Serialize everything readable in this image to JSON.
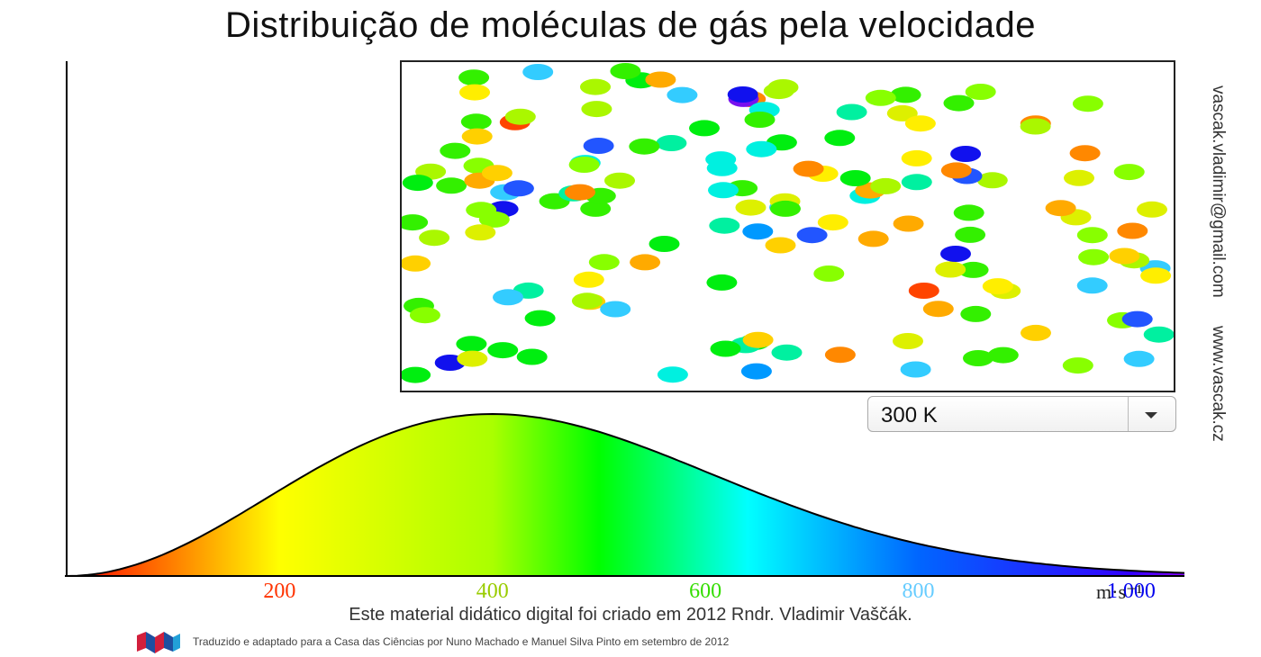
{
  "page": {
    "title": "Distribuição de moléculas de gás pela velocidade",
    "email": "vascak.vladimir@gmail.com",
    "website": "www.vascak.cz",
    "credit": "Este material didático digital foi criado em 2012 Rndr. Vladimir Vaščák.",
    "translation": "Traduzido e adaptado para a Casa das Ciências por Nuno Machado e Manuel Silva Pinto em setembro de 2012",
    "logo_icon": "casa-das-ciencias-logo-icon"
  },
  "temperature_select": {
    "value": "300 K",
    "arrow_icon": "chevron-down-icon"
  },
  "chart_data": {
    "type": "area",
    "title": "Distribuição de moléculas de gás pela velocidade",
    "xlabel": "m·s⁻¹",
    "ylabel": "",
    "xlim": [
      0,
      1050
    ],
    "x_ticks": [
      {
        "value": 200,
        "label": "200",
        "color": "#ff3300"
      },
      {
        "value": 400,
        "label": "400",
        "color": "#99cc00"
      },
      {
        "value": 600,
        "label": "600",
        "color": "#33dd00"
      },
      {
        "value": 800,
        "label": "800",
        "color": "#66ccff"
      },
      {
        "value": 1000,
        "label": "1 000",
        "color": "#0000ee"
      }
    ],
    "curve": "Maxwell-Boltzmann speed distribution, peak near 400 m·s⁻¹",
    "peak_speed": 400,
    "gradient_colors": [
      {
        "at": 0,
        "color": "#ff0000"
      },
      {
        "at": 200,
        "color": "#ffff00"
      },
      {
        "at": 400,
        "color": "#aaff00"
      },
      {
        "at": 500,
        "color": "#00ff00"
      },
      {
        "at": 640,
        "color": "#00ffff"
      },
      {
        "at": 800,
        "color": "#0066ff"
      },
      {
        "at": 1000,
        "color": "#3300ff"
      },
      {
        "at": 1050,
        "color": "#8800ff"
      }
    ],
    "molecule_colors": [
      "#ff4400",
      "#ff8800",
      "#ffaa00",
      "#ffd000",
      "#ffee00",
      "#ddf000",
      "#aaf700",
      "#88ff00",
      "#33f000",
      "#00ee10",
      "#00f0a0",
      "#00f0e0",
      "#33ccff",
      "#0099ff",
      "#2255ff",
      "#1111ee",
      "#7711ee"
    ]
  }
}
